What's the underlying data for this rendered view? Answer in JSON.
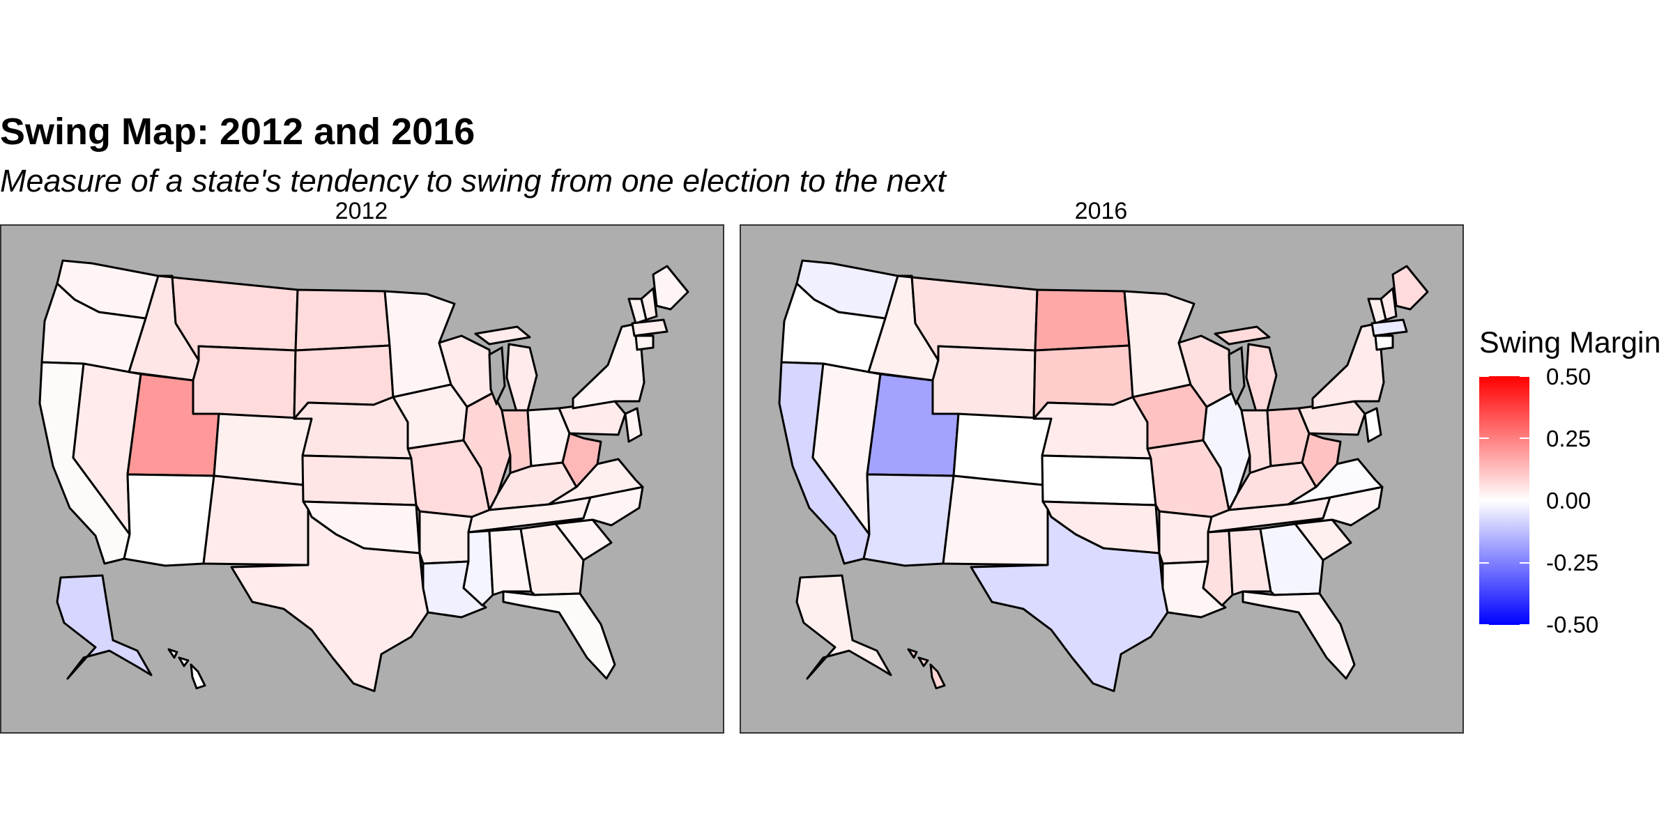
{
  "title": "Swing Map: 2012 and 2016",
  "subtitle": "Measure of a state's tendency to swing from one election to the next",
  "panels": [
    {
      "label": "2012",
      "swing": {
        "WA": 0.02,
        "OR": 0.02,
        "CA": 0.01,
        "NV": 0.04,
        "ID": 0.05,
        "MT": 0.07,
        "WY": 0.07,
        "UT": 0.2,
        "AZ": 0.0,
        "CO": 0.03,
        "NM": 0.04,
        "ND": 0.07,
        "SD": 0.07,
        "NE": 0.05,
        "KS": 0.05,
        "OK": 0.02,
        "TX": 0.04,
        "MN": 0.02,
        "IA": 0.03,
        "MO": 0.07,
        "AR": 0.03,
        "LA": -0.03,
        "WI": 0.04,
        "IL": 0.08,
        "MI": 0.04,
        "IN": 0.1,
        "OH": 0.02,
        "KY": 0.05,
        "TN": 0.03,
        "MS": -0.02,
        "AL": 0.02,
        "GA": 0.03,
        "FL": 0.01,
        "SC": 0.02,
        "NC": 0.02,
        "VA": 0.03,
        "WV": 0.14,
        "PA": 0.04,
        "NY": 0.02,
        "ME": 0.02,
        "NH": 0.03,
        "VT": 0.02,
        "MA": 0.03,
        "CT": 0.02,
        "NJ": 0.02,
        "AK": -0.08,
        "HI": 0.0
      }
    },
    {
      "label": "2016",
      "swing": {
        "WA": -0.03,
        "OR": 0.0,
        "CA": -0.08,
        "NV": 0.02,
        "ID": 0.03,
        "MT": 0.06,
        "WY": 0.05,
        "UT": -0.18,
        "AZ": -0.06,
        "CO": 0.0,
        "NM": 0.02,
        "ND": 0.17,
        "SD": 0.1,
        "NE": 0.04,
        "KS": 0.0,
        "OK": 0.04,
        "TX": -0.07,
        "MN": 0.03,
        "IA": 0.12,
        "MO": 0.08,
        "AR": 0.04,
        "LA": 0.02,
        "WI": 0.06,
        "IL": -0.02,
        "MI": 0.07,
        "IN": 0.06,
        "OH": 0.09,
        "KY": 0.06,
        "TN": 0.04,
        "MS": 0.06,
        "AL": 0.05,
        "GA": -0.02,
        "FL": 0.02,
        "SC": 0.03,
        "NC": 0.02,
        "VA": -0.01,
        "WV": 0.12,
        "PA": 0.05,
        "NY": 0.04,
        "ME": 0.07,
        "NH": 0.04,
        "VT": 0.03,
        "MA": -0.04,
        "CT": 0.0,
        "NJ": 0.0,
        "AK": 0.03,
        "HI": 0.08
      }
    }
  ],
  "legend": {
    "title": "Swing Margin",
    "ticks": [
      "0.50",
      "0.25",
      "0.00",
      "-0.25",
      "-0.50"
    ],
    "range": [
      -0.5,
      0.5
    ],
    "colors": {
      "low": "#0000ff",
      "mid": "#ffffff",
      "high": "#ff0000"
    }
  },
  "panel_background": "#aeaeae"
}
